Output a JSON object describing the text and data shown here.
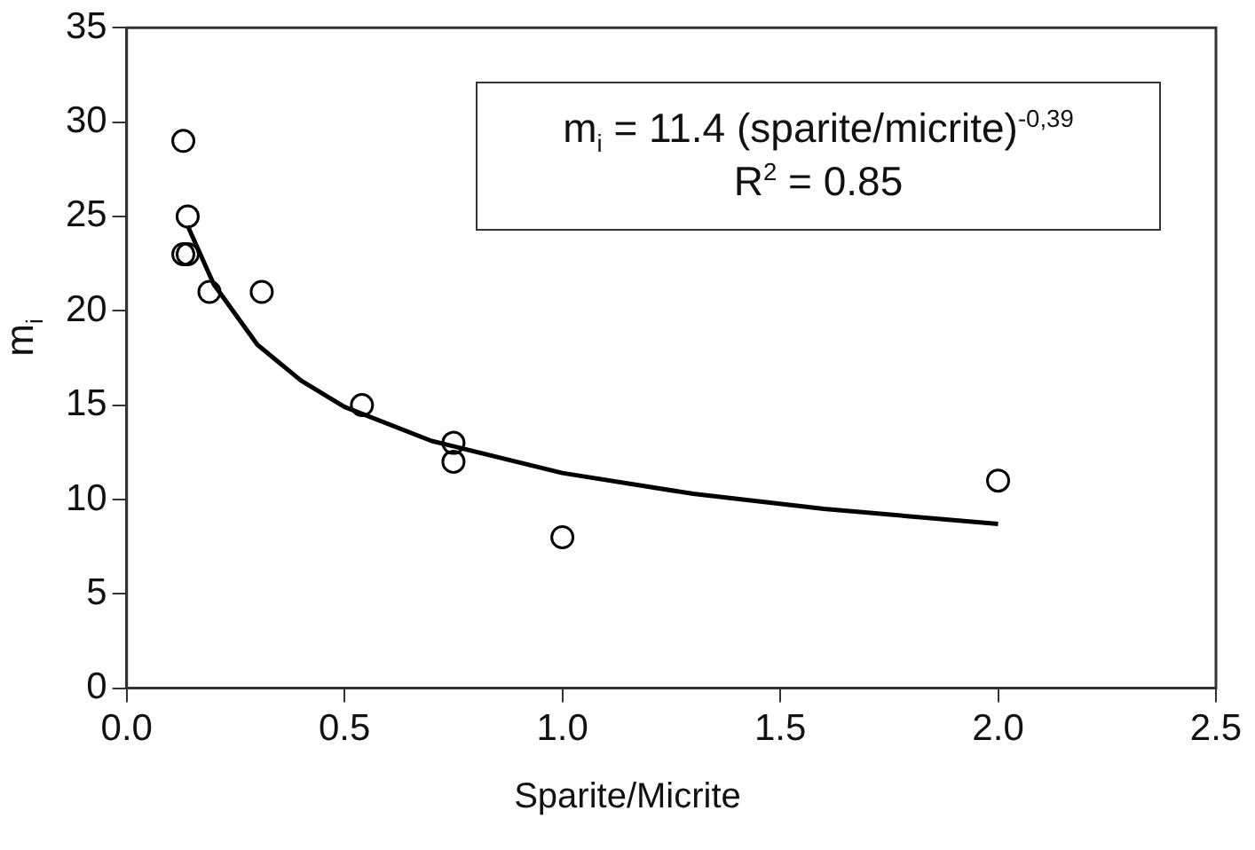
{
  "chart_data": {
    "type": "scatter",
    "xlabel": "Sparite/Micrite",
    "ylabel": "m$_{i}$",
    "series": [
      {
        "color": "#000000",
        "marker": "circle",
        "x": [
          0.13,
          0.14,
          0.13,
          0.14,
          0.19,
          0.31,
          0.54,
          0.75,
          0.75,
          1.0,
          2.0
        ],
        "values": [
          29,
          25,
          23,
          23,
          21,
          21,
          15,
          13,
          12,
          8,
          11
        ]
      },
      {
        "type": "line",
        "color": "#000000",
        "marker": "none",
        "x": [
          0.14,
          0.2,
          0.3,
          0.4,
          0.5,
          0.7,
          1.0,
          1.3,
          1.6,
          2.0
        ],
        "values": [
          24.5,
          21.4,
          18.2,
          16.3,
          14.9,
          13.1,
          11.4,
          10.3,
          9.5,
          8.7
        ]
      }
    ],
    "annotations": [
      "m$_{i}$ = 11.4 (sparite/micrite)$^{-0,39}$",
      "R$^{2}$ = 0.85"
    ],
    "xlim": [
      0,
      2.5
    ],
    "xticks": [
      {
        "value": 0,
        "label": "0.0"
      },
      0.5,
      {
        "value": 1,
        "label": "1.0"
      },
      1.5,
      {
        "value": 2,
        "label": "2.0"
      },
      2.5
    ],
    "ylim": [
      0,
      35
    ],
    "yticks": [
      0,
      5,
      10,
      15,
      20,
      25,
      30,
      35
    ],
    "grid": false,
    "legend": false
  }
}
